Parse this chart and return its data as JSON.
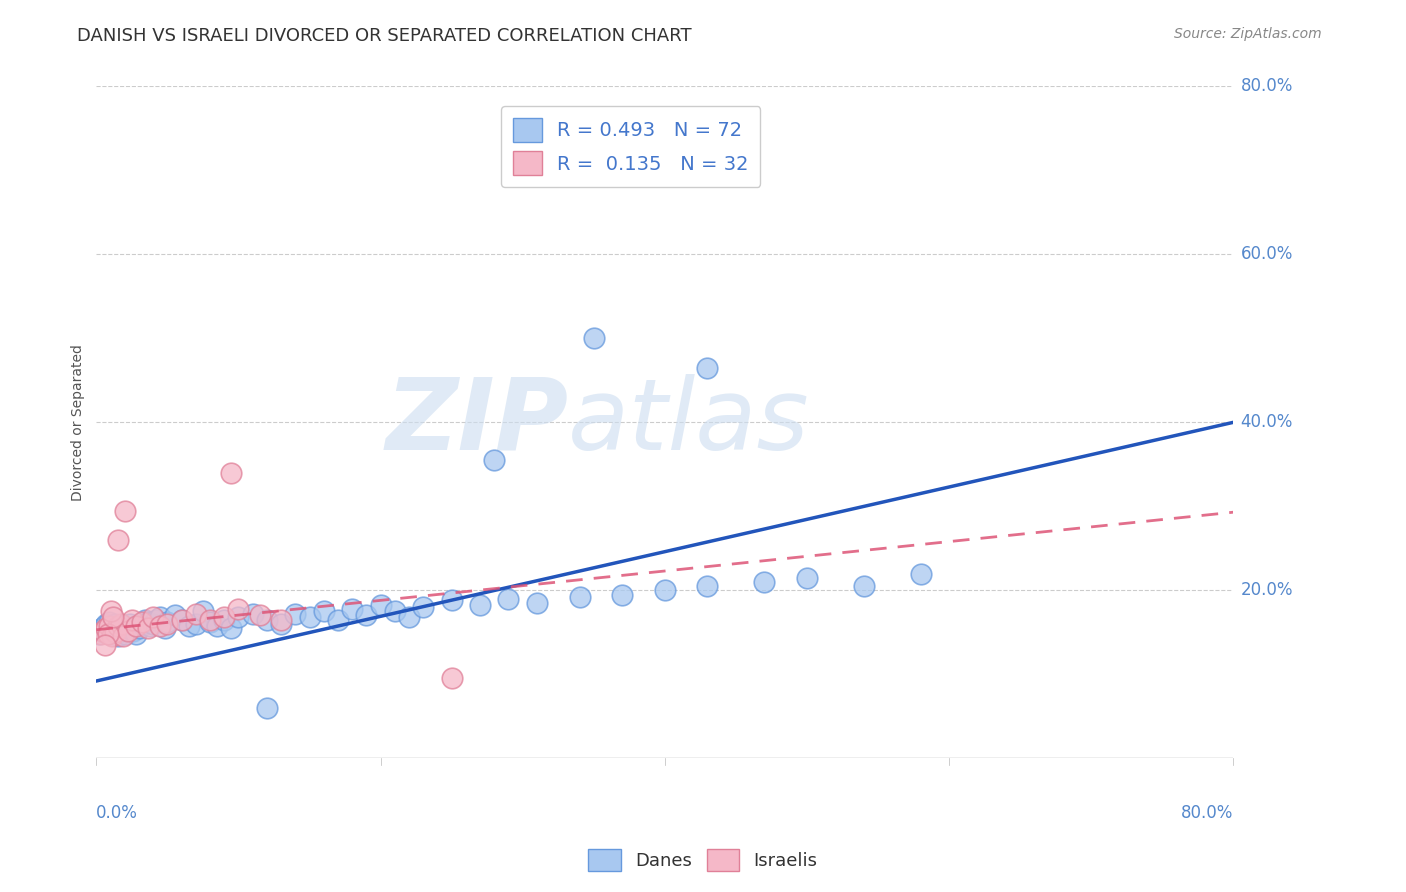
{
  "title": "DANISH VS ISRAELI DIVORCED OR SEPARATED CORRELATION CHART",
  "source": "Source: ZipAtlas.com",
  "ylabel": "Divorced or Separated",
  "xlim": [
    0.0,
    0.8
  ],
  "ylim": [
    0.0,
    0.8
  ],
  "ytick_positions": [
    0.2,
    0.4,
    0.6,
    0.8
  ],
  "ytick_labels": [
    "20.0%",
    "40.0%",
    "60.0%",
    "80.0%"
  ],
  "xtick_edge_labels": [
    "0.0%",
    "80.0%"
  ],
  "danes_color": "#a8c8f0",
  "israelis_color": "#f5b8c8",
  "danes_edge_color": "#6699dd",
  "israelis_edge_color": "#e08098",
  "trend_danes_color": "#2255bb",
  "trend_israelis_color": "#dd5577",
  "R_danes": 0.493,
  "N_danes": 72,
  "R_israelis": 0.135,
  "N_israelis": 32,
  "danes_x": [
    0.002,
    0.003,
    0.004,
    0.005,
    0.006,
    0.007,
    0.008,
    0.009,
    0.01,
    0.011,
    0.012,
    0.013,
    0.014,
    0.015,
    0.016,
    0.017,
    0.018,
    0.019,
    0.02,
    0.022,
    0.024,
    0.026,
    0.028,
    0.03,
    0.032,
    0.034,
    0.036,
    0.038,
    0.04,
    0.042,
    0.045,
    0.048,
    0.05,
    0.055,
    0.06,
    0.065,
    0.07,
    0.075,
    0.08,
    0.085,
    0.09,
    0.095,
    0.1,
    0.11,
    0.12,
    0.13,
    0.14,
    0.15,
    0.16,
    0.17,
    0.18,
    0.19,
    0.2,
    0.21,
    0.22,
    0.23,
    0.25,
    0.27,
    0.29,
    0.31,
    0.34,
    0.37,
    0.4,
    0.43,
    0.47,
    0.5,
    0.54,
    0.58,
    0.35,
    0.28,
    0.43,
    0.12
  ],
  "danes_y": [
    0.148,
    0.152,
    0.155,
    0.15,
    0.158,
    0.16,
    0.155,
    0.162,
    0.148,
    0.152,
    0.158,
    0.16,
    0.155,
    0.145,
    0.15,
    0.155,
    0.158,
    0.152,
    0.148,
    0.155,
    0.16,
    0.152,
    0.148,
    0.155,
    0.16,
    0.165,
    0.162,
    0.158,
    0.16,
    0.165,
    0.168,
    0.155,
    0.162,
    0.17,
    0.165,
    0.158,
    0.16,
    0.175,
    0.162,
    0.158,
    0.165,
    0.155,
    0.168,
    0.172,
    0.165,
    0.16,
    0.172,
    0.168,
    0.175,
    0.165,
    0.178,
    0.17,
    0.182,
    0.175,
    0.168,
    0.18,
    0.188,
    0.182,
    0.19,
    0.185,
    0.192,
    0.195,
    0.2,
    0.205,
    0.21,
    0.215,
    0.205,
    0.22,
    0.5,
    0.355,
    0.465,
    0.06
  ],
  "israelis_x": [
    0.003,
    0.005,
    0.007,
    0.009,
    0.011,
    0.013,
    0.015,
    0.017,
    0.019,
    0.022,
    0.025,
    0.028,
    0.032,
    0.036,
    0.04,
    0.045,
    0.05,
    0.06,
    0.07,
    0.08,
    0.09,
    0.1,
    0.115,
    0.13,
    0.015,
    0.02,
    0.01,
    0.008,
    0.006,
    0.012,
    0.25,
    0.095
  ],
  "israelis_y": [
    0.148,
    0.152,
    0.155,
    0.158,
    0.145,
    0.15,
    0.158,
    0.16,
    0.145,
    0.152,
    0.165,
    0.158,
    0.162,
    0.155,
    0.168,
    0.158,
    0.16,
    0.165,
    0.172,
    0.165,
    0.168,
    0.178,
    0.17,
    0.165,
    0.26,
    0.295,
    0.175,
    0.148,
    0.135,
    0.168,
    0.095,
    0.34
  ],
  "watermark_zip": "ZIP",
  "watermark_atlas": "atlas",
  "background_color": "#ffffff",
  "grid_color": "#cccccc",
  "title_fontsize": 13,
  "axis_label_fontsize": 10,
  "tick_fontsize": 12,
  "legend_fontsize": 14
}
